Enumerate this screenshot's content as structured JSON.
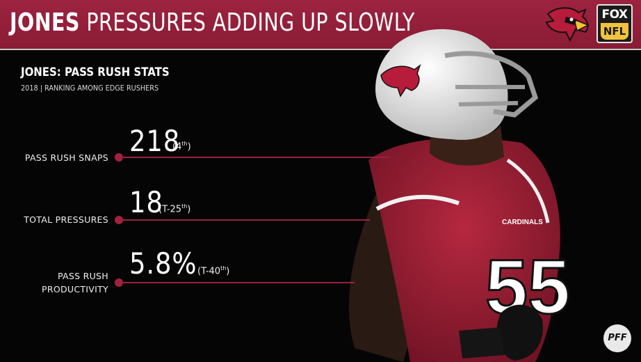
{
  "header": {
    "title_name": "JONES",
    "title_rest": "PRESSURES ADDING UP SLOWLY"
  },
  "logos": {
    "team": "cardinals-logo-icon",
    "network_top": "FOX",
    "network_bottom": "NFL",
    "source": "PFF"
  },
  "section": {
    "heading": "JONES: PASS RUSH STATS",
    "subheading": "2018 | RANKING AMONG EDGE RUSHERS"
  },
  "stats": [
    {
      "label": "PASS RUSH SNAPS",
      "value": "218",
      "rank_open": "(4",
      "rank_sup": "th",
      "rank_close": ")"
    },
    {
      "label": "TOTAL PRESSURES",
      "value": "18",
      "rank_open": "(T-25",
      "rank_sup": "th",
      "rank_close": ")"
    },
    {
      "label_line1": "PASS RUSH",
      "label_line2": "PRODUCTIVITY",
      "value": "5.8%",
      "rank_open": "(T-40",
      "rank_sup": "th",
      "rank_close": ")"
    }
  ],
  "player": {
    "jersey_text": "CARDINALS",
    "jersey_number": "55"
  },
  "colors": {
    "accent": "#9d2340",
    "line": "#9b2140",
    "background": "#050505",
    "nfl_yellow": "#f1c23d"
  }
}
